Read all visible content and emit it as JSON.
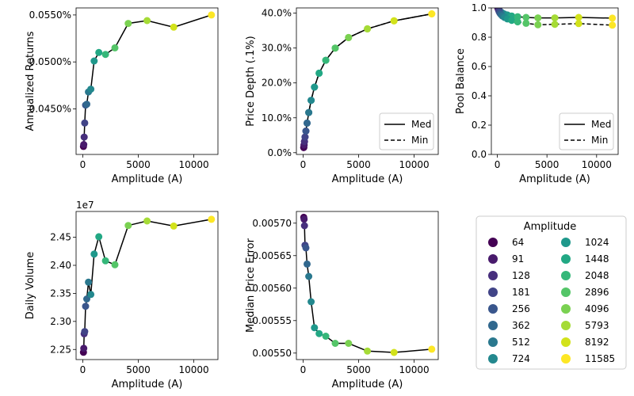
{
  "chart_data": [
    {
      "type": "line",
      "panel": "annualized-returns",
      "xlabel": "Amplitude (A)",
      "ylabel": "Annualized Returns",
      "xlim": [
        -600,
        12170
      ],
      "ylim": [
        0.04015,
        0.05575
      ],
      "xticks": [
        {
          "v": 0,
          "label": "0"
        },
        {
          "v": 5000,
          "label": "5000"
        },
        {
          "v": 10000,
          "label": "10000"
        }
      ],
      "yticks": [
        {
          "v": 0.045,
          "label": "0.0450%"
        },
        {
          "v": 0.05,
          "label": "0.0500%"
        },
        {
          "v": 0.055,
          "label": "0.0550%"
        }
      ],
      "series": [
        {
          "style": "solid",
          "x": [
            64,
            91,
            128,
            181,
            256,
            362,
            512,
            724,
            1024,
            1448,
            2048,
            2896,
            4096,
            5793,
            8192,
            11585
          ],
          "y": [
            0.041,
            0.0412,
            0.042,
            0.0435,
            0.0454,
            0.0455,
            0.0468,
            0.0471,
            0.0501,
            0.051,
            0.0508,
            0.0515,
            0.0541,
            0.0544,
            0.0537,
            0.055
          ]
        }
      ]
    },
    {
      "type": "line",
      "panel": "price-depth",
      "xlabel": "Amplitude (A)",
      "ylabel": "Price Depth (.1%)",
      "xlim": [
        -600,
        12170
      ],
      "ylim": [
        -0.5,
        41.5
      ],
      "xticks": [
        {
          "v": 0,
          "label": "0"
        },
        {
          "v": 5000,
          "label": "5000"
        },
        {
          "v": 10000,
          "label": "10000"
        }
      ],
      "yticks": [
        {
          "v": 0,
          "label": "0.0%"
        },
        {
          "v": 10,
          "label": "10.0%"
        },
        {
          "v": 20,
          "label": "20.0%"
        },
        {
          "v": 30,
          "label": "30.0%"
        },
        {
          "v": 40,
          "label": "40.0%"
        }
      ],
      "legend": {
        "placement": "lower-right",
        "entries": [
          {
            "label": "Med",
            "style": "solid"
          },
          {
            "label": "Min",
            "style": "dashed"
          }
        ]
      },
      "series": [
        {
          "style": "solid",
          "x": [
            64,
            91,
            128,
            181,
            256,
            362,
            512,
            724,
            1024,
            1448,
            2048,
            2896,
            4096,
            5793,
            8192,
            11585
          ],
          "y": [
            1.5,
            2.2,
            3.2,
            4.5,
            6.2,
            8.5,
            11.5,
            15.0,
            18.8,
            22.8,
            26.5,
            30.0,
            33.0,
            35.5,
            37.8,
            39.8
          ]
        },
        {
          "style": "dashed",
          "x": [
            64,
            91,
            128,
            181,
            256,
            362,
            512,
            724,
            1024,
            1448,
            2048,
            2896,
            4096,
            5793,
            8192,
            11585
          ],
          "y": [
            1.5,
            2.2,
            3.2,
            4.5,
            6.2,
            8.5,
            11.5,
            15.0,
            18.8,
            22.8,
            26.5,
            30.0,
            33.0,
            35.5,
            37.8,
            39.8
          ]
        }
      ]
    },
    {
      "type": "line",
      "panel": "pool-balance",
      "xlabel": "Amplitude (A)",
      "ylabel": "Pool Balance",
      "xlim": [
        -600,
        12170
      ],
      "ylim": [
        0,
        1.0
      ],
      "xticks": [
        {
          "v": 0,
          "label": "0"
        },
        {
          "v": 5000,
          "label": "5000"
        },
        {
          "v": 10000,
          "label": "10000"
        }
      ],
      "yticks": [
        {
          "v": 0,
          "label": "0.0"
        },
        {
          "v": 0.2,
          "label": "0.2"
        },
        {
          "v": 0.4,
          "label": "0.4"
        },
        {
          "v": 0.6,
          "label": "0.6"
        },
        {
          "v": 0.8,
          "label": "0.8"
        },
        {
          "v": 1.0,
          "label": "1.0"
        }
      ],
      "legend": {
        "placement": "lower-right",
        "entries": [
          {
            "label": "Med",
            "style": "solid"
          },
          {
            "label": "Min",
            "style": "dashed"
          }
        ]
      },
      "series": [
        {
          "style": "solid",
          "x": [
            64,
            91,
            128,
            181,
            256,
            362,
            512,
            724,
            1024,
            1448,
            2048,
            2896,
            4096,
            5793,
            8192,
            11585
          ],
          "y": [
            0.998,
            0.995,
            0.99,
            0.985,
            0.978,
            0.972,
            0.965,
            0.958,
            0.952,
            0.945,
            0.94,
            0.935,
            0.932,
            0.932,
            0.935,
            0.93
          ]
        },
        {
          "style": "dashed",
          "x": [
            64,
            91,
            128,
            181,
            256,
            362,
            512,
            724,
            1024,
            1448,
            2048,
            2896,
            4096,
            5793,
            8192,
            11585
          ],
          "y": [
            0.998,
            0.994,
            0.985,
            0.975,
            0.965,
            0.955,
            0.945,
            0.935,
            0.925,
            0.915,
            0.905,
            0.895,
            0.885,
            0.888,
            0.893,
            0.882
          ]
        }
      ]
    },
    {
      "type": "line",
      "panel": "daily-volume",
      "xlabel": "Amplitude (A)",
      "ylabel": "Daily Volume",
      "offset_label": "1e7",
      "xlim": [
        -600,
        12170
      ],
      "ylim": [
        22320000,
        24960000
      ],
      "xticks": [
        {
          "v": 0,
          "label": "0"
        },
        {
          "v": 5000,
          "label": "5000"
        },
        {
          "v": 10000,
          "label": "10000"
        }
      ],
      "yticks": [
        {
          "v": 22500000,
          "label": "2.25"
        },
        {
          "v": 23000000,
          "label": "2.30"
        },
        {
          "v": 23500000,
          "label": "2.35"
        },
        {
          "v": 24000000,
          "label": "2.40"
        },
        {
          "v": 24500000,
          "label": "2.45"
        }
      ],
      "series": [
        {
          "style": "solid",
          "x": [
            64,
            91,
            128,
            181,
            256,
            362,
            512,
            724,
            1024,
            1448,
            2048,
            2896,
            4096,
            5793,
            8192,
            11585
          ],
          "y": [
            22450000,
            22520000,
            22780000,
            22820000,
            23270000,
            23400000,
            23700000,
            23480000,
            24200000,
            24510000,
            24080000,
            24010000,
            24710000,
            24790000,
            24700000,
            24820000
          ]
        }
      ]
    },
    {
      "type": "line",
      "panel": "median-price-error",
      "xlabel": "Amplitude (A)",
      "ylabel": "Median Price Error",
      "xlim": [
        -600,
        12170
      ],
      "ylim": [
        0.00549,
        0.005718
      ],
      "xticks": [
        {
          "v": 0,
          "label": "0"
        },
        {
          "v": 5000,
          "label": "5000"
        },
        {
          "v": 10000,
          "label": "10000"
        }
      ],
      "yticks": [
        {
          "v": 0.0055,
          "label": "0.00550"
        },
        {
          "v": 0.00555,
          "label": "0.00555"
        },
        {
          "v": 0.0056,
          "label": "0.00560"
        },
        {
          "v": 0.00565,
          "label": "0.00565"
        },
        {
          "v": 0.0057,
          "label": "0.00570"
        }
      ],
      "series": [
        {
          "style": "solid",
          "x": [
            64,
            91,
            128,
            181,
            256,
            362,
            512,
            724,
            1024,
            1448,
            2048,
            2896,
            4096,
            5793,
            8192,
            11585
          ],
          "y": [
            0.005709,
            0.005706,
            0.005696,
            0.005666,
            0.005662,
            0.005637,
            0.005618,
            0.005579,
            0.005539,
            0.00553,
            0.005526,
            0.005515,
            0.005515,
            0.005503,
            0.005501,
            0.005506
          ]
        }
      ]
    }
  ],
  "legend": {
    "title": "Amplitude",
    "entries": [
      {
        "label": "64",
        "color": "#440154"
      },
      {
        "label": "91",
        "color": "#481a6c"
      },
      {
        "label": "128",
        "color": "#472f7d"
      },
      {
        "label": "181",
        "color": "#414487"
      },
      {
        "label": "256",
        "color": "#39568c"
      },
      {
        "label": "362",
        "color": "#31688e"
      },
      {
        "label": "512",
        "color": "#2a788e"
      },
      {
        "label": "724",
        "color": "#23888e"
      },
      {
        "label": "1024",
        "color": "#1f988b"
      },
      {
        "label": "1448",
        "color": "#22a884"
      },
      {
        "label": "2048",
        "color": "#35b779"
      },
      {
        "label": "2896",
        "color": "#54c568"
      },
      {
        "label": "4096",
        "color": "#7ad151"
      },
      {
        "label": "5793",
        "color": "#a5db36"
      },
      {
        "label": "8192",
        "color": "#d2e21b"
      },
      {
        "label": "11585",
        "color": "#fde725"
      }
    ]
  }
}
